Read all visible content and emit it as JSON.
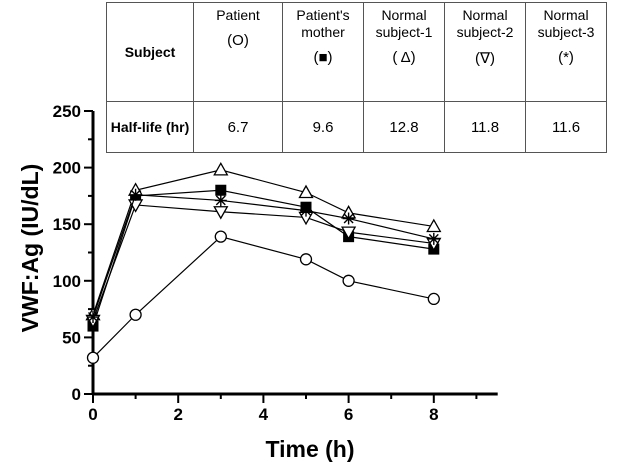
{
  "table": {
    "row_header_subject": "Subject",
    "row_header_halflife": "Half-life (hr)",
    "columns": [
      {
        "name": "Patient",
        "symbol": "(O)",
        "half_life": "6.7"
      },
      {
        "name": "Patient's mother",
        "symbol": "(■)",
        "half_life": "9.6"
      },
      {
        "name": "Normal subject-1",
        "symbol": "( Δ)",
        "half_life": "12.8"
      },
      {
        "name": "Normal subject-2",
        "symbol": "(∇)",
        "half_life": "11.8"
      },
      {
        "name": "Normal subject-3",
        "symbol": "(*)",
        "half_life": "11.6"
      }
    ]
  },
  "chart_data": {
    "type": "line",
    "xlabel": "Time (h)",
    "ylabel": "VWF:Ag (IU/dL)",
    "xlim": [
      0,
      9.5
    ],
    "ylim": [
      0,
      250
    ],
    "xticks": [
      0,
      2,
      4,
      6,
      8
    ],
    "yticks": [
      0,
      50,
      100,
      150,
      200,
      250
    ],
    "grid": false,
    "series": [
      {
        "name": "Patient",
        "marker": "circle",
        "x": [
          0,
          1,
          3,
          5,
          6,
          8
        ],
        "y": [
          32,
          70,
          139,
          119,
          100,
          84
        ]
      },
      {
        "name": "Patient's mother",
        "marker": "square",
        "x": [
          0,
          1,
          3,
          5,
          6,
          8
        ],
        "y": [
          60,
          175,
          180,
          165,
          139,
          128
        ]
      },
      {
        "name": "Normal subject-1",
        "marker": "triangle-up",
        "x": [
          0,
          1,
          3,
          5,
          6,
          8
        ],
        "y": [
          70,
          180,
          198,
          178,
          160,
          148
        ]
      },
      {
        "name": "Normal subject-2",
        "marker": "triangle-down",
        "x": [
          0,
          1,
          3,
          5,
          6,
          8
        ],
        "y": [
          65,
          167,
          161,
          156,
          143,
          133
        ]
      },
      {
        "name": "Normal subject-3",
        "marker": "star",
        "x": [
          0,
          1,
          3,
          5,
          6,
          8
        ],
        "y": [
          68,
          176,
          171,
          162,
          155,
          137
        ]
      }
    ]
  }
}
